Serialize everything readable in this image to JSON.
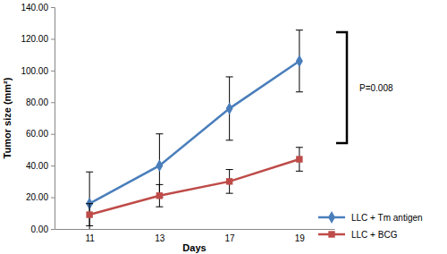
{
  "chart_data": {
    "type": "line",
    "x_label": "Days",
    "y_label": "Tumor size (mm²)",
    "categories": [
      "11",
      "13",
      "17",
      "19"
    ],
    "series": [
      {
        "name": "LLC + Tm antigen",
        "color": "#4a7ebb",
        "marker": "diamond",
        "line_style": "solid",
        "values": [
          16,
          40,
          76,
          106
        ],
        "errors": [
          20,
          20,
          20,
          19.5
        ]
      },
      {
        "name": "LLC + BCG",
        "color": "#be4b48",
        "marker": "square",
        "line_style": "solid",
        "values": [
          9,
          21,
          30,
          44
        ],
        "errors": [
          7,
          7,
          7.5,
          7.5
        ]
      }
    ],
    "ylim": [
      0,
      140
    ],
    "yticks": [
      {
        "value": 0,
        "label": "0.00"
      },
      {
        "value": 20,
        "label": "20.00"
      },
      {
        "value": 40,
        "label": "40.00"
      },
      {
        "value": 60,
        "label": "60.00"
      },
      {
        "value": 80,
        "label": "80.00"
      },
      {
        "value": 100,
        "label": "100.00"
      },
      {
        "value": 120,
        "label": "120.00"
      },
      {
        "value": 140,
        "label": "140.00"
      }
    ],
    "annotations": [
      "P=0.008"
    ],
    "legend": "right",
    "grid": false
  }
}
